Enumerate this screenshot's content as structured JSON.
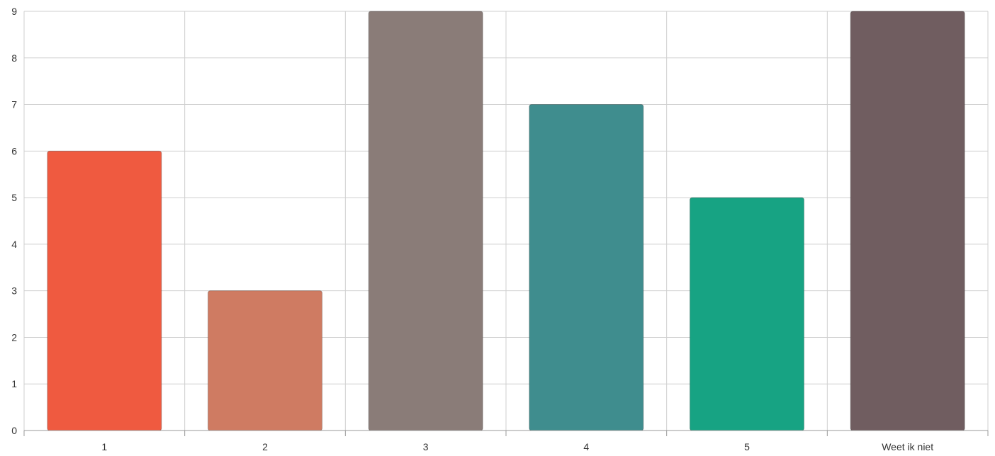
{
  "chart_data": {
    "type": "bar",
    "categories": [
      "1",
      "2",
      "3",
      "4",
      "5",
      "Weet ik niet"
    ],
    "values": [
      6,
      3,
      9,
      7,
      5,
      9
    ],
    "colors": [
      "#ef5a40",
      "#cf7b62",
      "#8a7c78",
      "#3f8d8e",
      "#17a383",
      "#705d60"
    ],
    "title": "",
    "xlabel": "",
    "ylabel": "",
    "ylim": [
      0,
      9
    ],
    "yticks": [
      0,
      1,
      2,
      3,
      4,
      5,
      6,
      7,
      8,
      9
    ],
    "grid": true
  }
}
